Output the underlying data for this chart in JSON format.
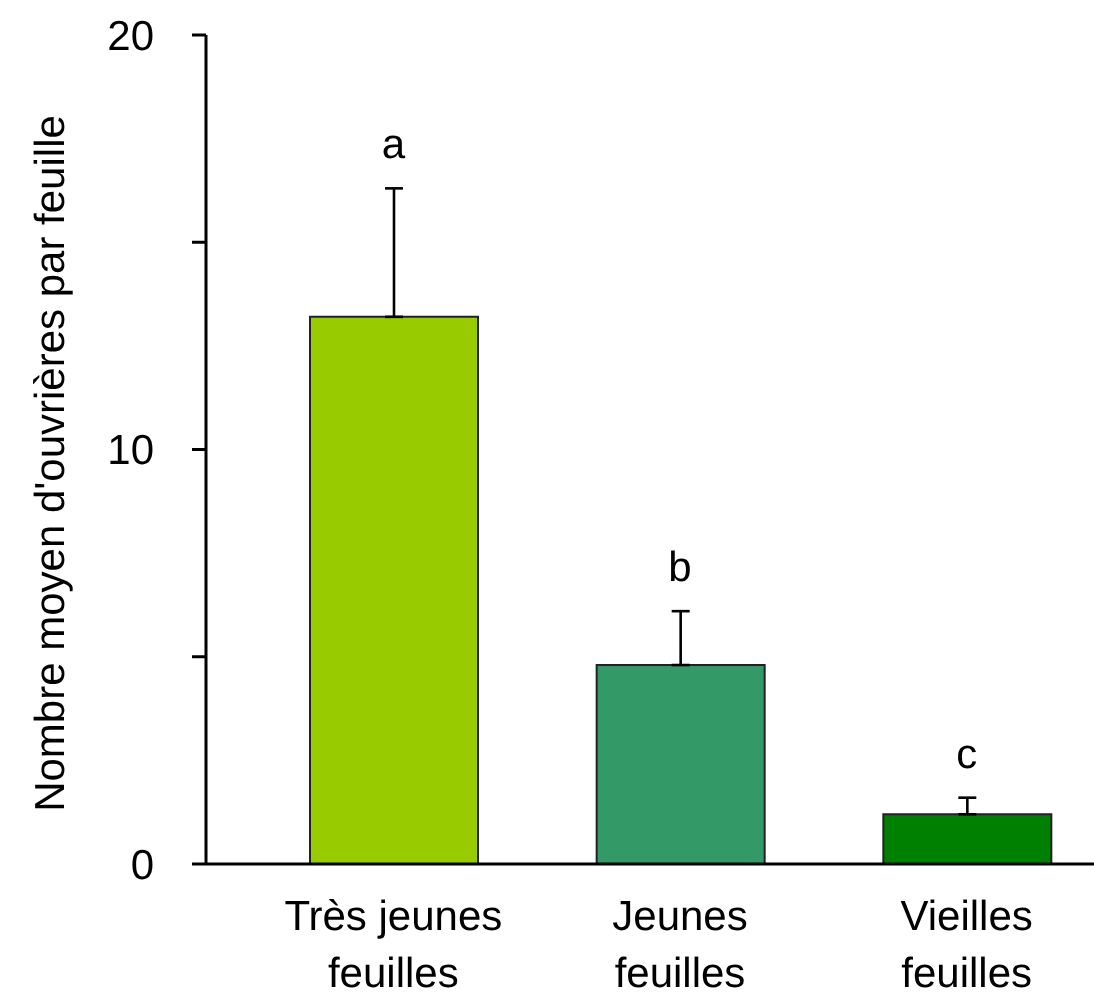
{
  "chart_data": {
    "type": "bar",
    "ylabel": "Nombre moyen d'ouvrières par feuille",
    "categories": [
      "Très jeunes feuilles",
      "Jeunes feuilles",
      "Vieilles feuilles"
    ],
    "values": [
      13.2,
      4.8,
      1.2
    ],
    "colors": [
      "#99cc00",
      "#339966",
      "#008000"
    ],
    "errors": [
      [
        13.2,
        16.3
      ],
      [
        4.8,
        6.1
      ],
      [
        1.2,
        1.6
      ]
    ],
    "ylim": [
      0,
      20
    ],
    "yticks": [
      0,
      {
        "value": 5,
        "label": null
      },
      10,
      {
        "value": 15,
        "label": null
      },
      20
    ],
    "annotations": [
      "a",
      "b",
      "c"
    ]
  }
}
